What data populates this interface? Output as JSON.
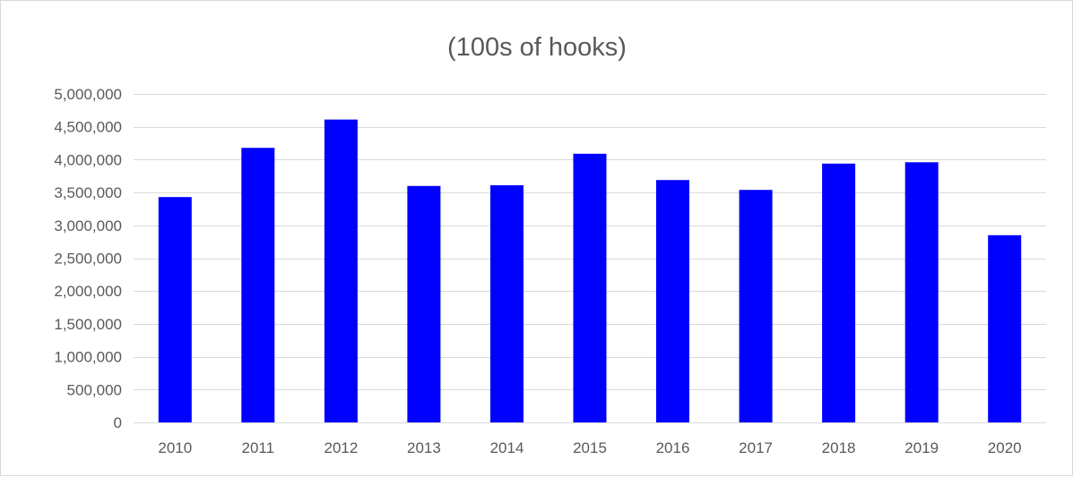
{
  "chart_data": {
    "type": "bar",
    "title": "(100s of hooks)",
    "xlabel": "",
    "ylabel": "",
    "categories": [
      "2010",
      "2011",
      "2012",
      "2013",
      "2014",
      "2015",
      "2016",
      "2017",
      "2018",
      "2019",
      "2020"
    ],
    "values": [
      3430000,
      4180000,
      4610000,
      3600000,
      3610000,
      4090000,
      3690000,
      3540000,
      3940000,
      3960000,
      2850000
    ],
    "ylim": [
      0,
      5000000
    ],
    "yticks": [
      0,
      500000,
      1000000,
      1500000,
      2000000,
      2500000,
      3000000,
      3500000,
      4000000,
      4500000,
      5000000
    ],
    "ytick_labels": [
      "0",
      "500,000",
      "1,000,000",
      "1,500,000",
      "2,000,000",
      "2,500,000",
      "3,000,000",
      "3,500,000",
      "4,000,000",
      "4,500,000",
      "5,000,000"
    ],
    "grid": true,
    "legend": "none",
    "bar_color": "#0000FF",
    "grid_color": "#D9D9D9",
    "text_color": "#595959"
  }
}
